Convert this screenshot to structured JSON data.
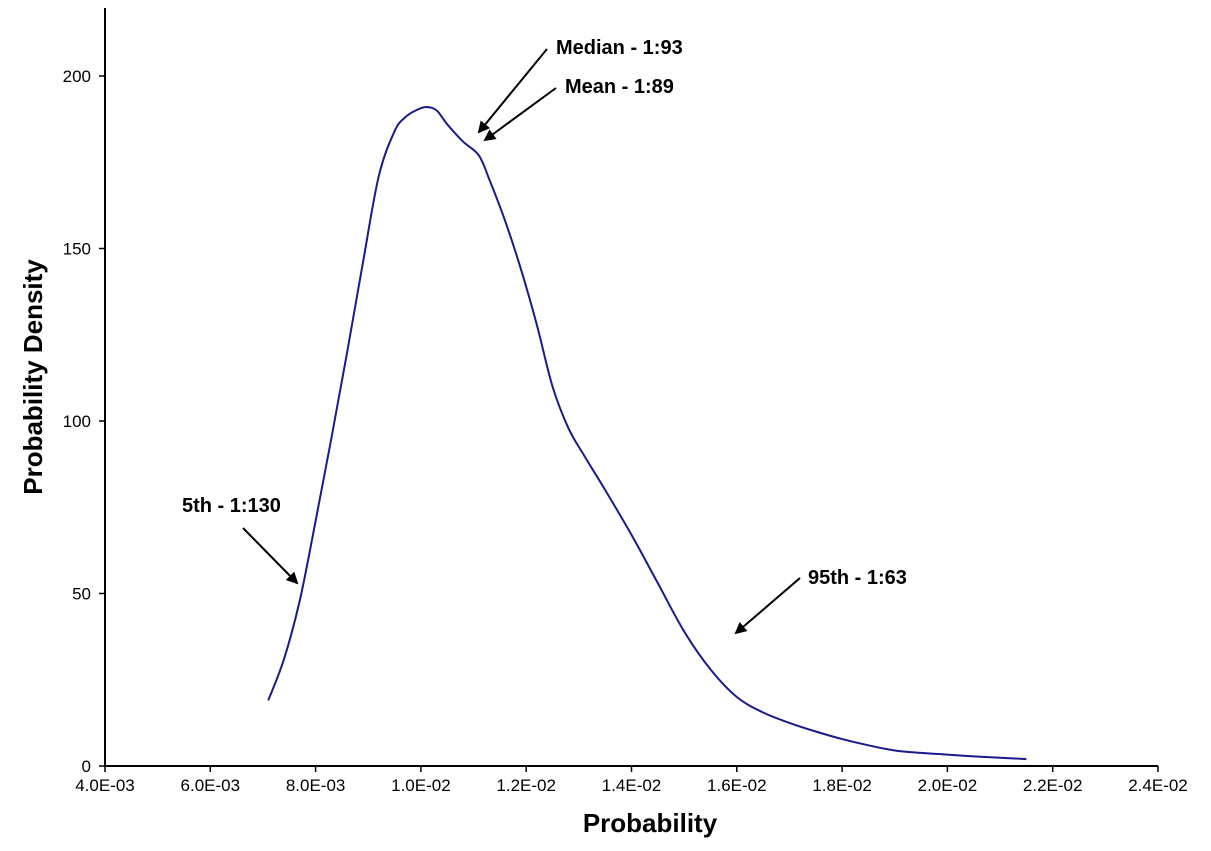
{
  "chart_data": {
    "type": "line",
    "title": "",
    "xlabel": "Probability",
    "ylabel": "Probability Density",
    "xlim": [
      0.004,
      0.024
    ],
    "ylim": [
      0,
      200
    ],
    "x_ticks": [
      0.004,
      0.006,
      0.008,
      0.01,
      0.012,
      0.014,
      0.016,
      0.018,
      0.02,
      0.022,
      0.024
    ],
    "x_tick_labels": [
      "4.0E-03",
      "6.0E-03",
      "8.0E-03",
      "1.0E-02",
      "1.2E-02",
      "1.4E-02",
      "1.6E-02",
      "1.8E-02",
      "2.0E-02",
      "2.2E-02",
      "2.4E-02"
    ],
    "y_ticks": [
      0,
      50,
      100,
      150,
      200
    ],
    "y_tick_labels": [
      "0",
      "50",
      "100",
      "150",
      "200"
    ],
    "grid": false,
    "legend": "none",
    "line_color": "#1a1a8c",
    "series": [
      {
        "x": [
          0.0071,
          0.0074,
          0.0077,
          0.008,
          0.0083,
          0.0086,
          0.0089,
          0.0092,
          0.0095,
          0.0097,
          0.0099,
          0.0101,
          0.0103,
          0.0105,
          0.0108,
          0.0111,
          0.0113,
          0.0116,
          0.0119,
          0.0122,
          0.0125,
          0.0128,
          0.0131,
          0.0135,
          0.014,
          0.0145,
          0.015,
          0.0155,
          0.016,
          0.0165,
          0.017,
          0.0175,
          0.018,
          0.0185,
          0.019,
          0.0195,
          0.02,
          0.0205,
          0.021,
          0.0215
        ],
        "y": [
          19,
          31,
          48,
          71,
          95,
          120,
          146,
          171,
          184,
          188,
          190,
          191,
          190,
          186,
          181,
          177,
          170,
          158,
          144,
          128,
          110,
          98,
          90,
          80,
          67,
          53,
          39,
          28,
          20,
          15.5,
          12.5,
          10,
          7.8,
          6,
          4.5,
          3.8,
          3.3,
          2.8,
          2.4,
          2.0
        ]
      }
    ],
    "annotations": [
      {
        "label": "Median - 1:93"
      },
      {
        "label": "Mean - 1:89"
      },
      {
        "label": "5th - 1:130"
      },
      {
        "label": "95th - 1:63"
      }
    ]
  }
}
